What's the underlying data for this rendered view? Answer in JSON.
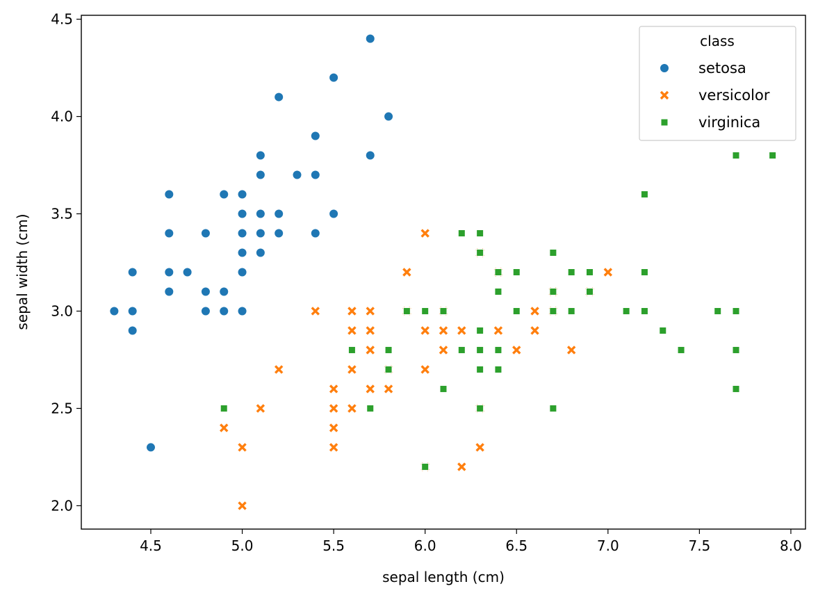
{
  "chart_data": {
    "type": "scatter",
    "xlabel": "sepal length (cm)",
    "ylabel": "sepal width (cm)",
    "xlim": [
      4.12,
      8.08
    ],
    "ylim": [
      1.88,
      4.52
    ],
    "xticks": [
      "4.5",
      "5.0",
      "5.5",
      "6.0",
      "6.5",
      "7.0",
      "7.5",
      "8.0"
    ],
    "yticks": [
      "2.0",
      "2.5",
      "3.0",
      "3.5",
      "4.0",
      "4.5"
    ],
    "grid": false,
    "legend": {
      "title": "class",
      "placement": "top-right"
    },
    "series": [
      {
        "name": "setosa",
        "marker": "circle",
        "color": "#1f77b4",
        "points": [
          [
            5.1,
            3.5
          ],
          [
            4.9,
            3.0
          ],
          [
            4.7,
            3.2
          ],
          [
            4.6,
            3.1
          ],
          [
            5.0,
            3.6
          ],
          [
            5.4,
            3.9
          ],
          [
            4.6,
            3.4
          ],
          [
            5.0,
            3.4
          ],
          [
            4.4,
            2.9
          ],
          [
            4.9,
            3.1
          ],
          [
            5.4,
            3.7
          ],
          [
            4.8,
            3.4
          ],
          [
            4.8,
            3.0
          ],
          [
            4.3,
            3.0
          ],
          [
            5.8,
            4.0
          ],
          [
            5.7,
            4.4
          ],
          [
            5.4,
            3.9
          ],
          [
            5.1,
            3.5
          ],
          [
            5.7,
            3.8
          ],
          [
            5.1,
            3.8
          ],
          [
            5.4,
            3.4
          ],
          [
            5.1,
            3.7
          ],
          [
            4.6,
            3.6
          ],
          [
            5.1,
            3.3
          ],
          [
            4.8,
            3.4
          ],
          [
            5.0,
            3.0
          ],
          [
            5.0,
            3.4
          ],
          [
            5.2,
            3.5
          ],
          [
            5.2,
            3.4
          ],
          [
            4.7,
            3.2
          ],
          [
            4.8,
            3.1
          ],
          [
            5.4,
            3.4
          ],
          [
            5.2,
            4.1
          ],
          [
            5.5,
            4.2
          ],
          [
            4.9,
            3.1
          ],
          [
            5.0,
            3.2
          ],
          [
            5.5,
            3.5
          ],
          [
            4.9,
            3.6
          ],
          [
            4.4,
            3.0
          ],
          [
            5.1,
            3.4
          ],
          [
            5.0,
            3.5
          ],
          [
            4.5,
            2.3
          ],
          [
            4.4,
            3.2
          ],
          [
            5.0,
            3.5
          ],
          [
            5.1,
            3.8
          ],
          [
            4.8,
            3.0
          ],
          [
            5.1,
            3.8
          ],
          [
            4.6,
            3.2
          ],
          [
            5.3,
            3.7
          ],
          [
            5.0,
            3.3
          ]
        ]
      },
      {
        "name": "versicolor",
        "marker": "x",
        "color": "#ff7f0e",
        "points": [
          [
            7.0,
            3.2
          ],
          [
            6.4,
            3.2
          ],
          [
            6.9,
            3.1
          ],
          [
            5.5,
            2.3
          ],
          [
            6.5,
            2.8
          ],
          [
            5.7,
            2.8
          ],
          [
            6.3,
            3.3
          ],
          [
            4.9,
            2.4
          ],
          [
            6.6,
            2.9
          ],
          [
            5.2,
            2.7
          ],
          [
            5.0,
            2.0
          ],
          [
            5.9,
            3.0
          ],
          [
            6.0,
            2.2
          ],
          [
            6.1,
            2.9
          ],
          [
            5.6,
            2.9
          ],
          [
            6.7,
            3.1
          ],
          [
            5.6,
            3.0
          ],
          [
            5.8,
            2.7
          ],
          [
            6.2,
            2.2
          ],
          [
            5.6,
            2.5
          ],
          [
            5.9,
            3.2
          ],
          [
            6.1,
            2.8
          ],
          [
            6.3,
            2.5
          ],
          [
            6.1,
            2.8
          ],
          [
            6.4,
            2.9
          ],
          [
            6.6,
            3.0
          ],
          [
            6.8,
            2.8
          ],
          [
            6.7,
            3.0
          ],
          [
            6.0,
            2.9
          ],
          [
            5.7,
            2.6
          ],
          [
            5.5,
            2.4
          ],
          [
            5.5,
            2.4
          ],
          [
            5.8,
            2.7
          ],
          [
            6.0,
            2.7
          ],
          [
            5.4,
            3.0
          ],
          [
            6.0,
            3.4
          ],
          [
            6.7,
            3.1
          ],
          [
            6.3,
            2.3
          ],
          [
            5.6,
            3.0
          ],
          [
            5.5,
            2.5
          ],
          [
            5.5,
            2.6
          ],
          [
            6.1,
            3.0
          ],
          [
            5.8,
            2.6
          ],
          [
            5.0,
            2.3
          ],
          [
            5.6,
            2.7
          ],
          [
            5.7,
            3.0
          ],
          [
            5.7,
            2.9
          ],
          [
            6.2,
            2.9
          ],
          [
            5.1,
            2.5
          ],
          [
            5.7,
            2.8
          ]
        ]
      },
      {
        "name": "virginica",
        "marker": "square",
        "color": "#2ca02c",
        "points": [
          [
            6.3,
            3.3
          ],
          [
            5.8,
            2.7
          ],
          [
            7.1,
            3.0
          ],
          [
            6.3,
            2.9
          ],
          [
            6.5,
            3.0
          ],
          [
            7.6,
            3.0
          ],
          [
            4.9,
            2.5
          ],
          [
            7.3,
            2.9
          ],
          [
            6.7,
            2.5
          ],
          [
            7.2,
            3.6
          ],
          [
            6.5,
            3.2
          ],
          [
            6.4,
            2.7
          ],
          [
            6.8,
            3.0
          ],
          [
            5.7,
            2.5
          ],
          [
            5.8,
            2.8
          ],
          [
            6.4,
            3.2
          ],
          [
            6.5,
            3.0
          ],
          [
            7.7,
            3.8
          ],
          [
            7.7,
            2.6
          ],
          [
            6.0,
            2.2
          ],
          [
            6.9,
            3.2
          ],
          [
            5.6,
            2.8
          ],
          [
            7.7,
            2.8
          ],
          [
            6.3,
            2.7
          ],
          [
            6.7,
            3.3
          ],
          [
            7.2,
            3.2
          ],
          [
            6.2,
            2.8
          ],
          [
            6.1,
            3.0
          ],
          [
            6.4,
            2.8
          ],
          [
            7.2,
            3.0
          ],
          [
            7.4,
            2.8
          ],
          [
            7.9,
            3.8
          ],
          [
            6.4,
            2.8
          ],
          [
            6.3,
            2.8
          ],
          [
            6.1,
            2.6
          ],
          [
            7.7,
            3.0
          ],
          [
            6.3,
            3.4
          ],
          [
            6.4,
            3.1
          ],
          [
            6.0,
            3.0
          ],
          [
            6.9,
            3.1
          ],
          [
            6.7,
            3.1
          ],
          [
            6.9,
            3.1
          ],
          [
            5.8,
            2.7
          ],
          [
            6.8,
            3.2
          ],
          [
            6.7,
            3.3
          ],
          [
            6.7,
            3.0
          ],
          [
            6.3,
            2.5
          ],
          [
            6.5,
            3.0
          ],
          [
            6.2,
            3.4
          ],
          [
            5.9,
            3.0
          ]
        ]
      }
    ]
  }
}
